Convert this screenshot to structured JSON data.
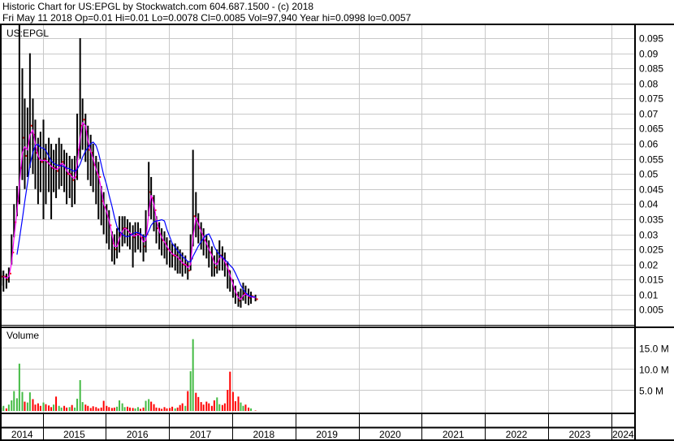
{
  "header": {
    "line1": "Historic Chart for US:EPGL by Stockwatch.com 604.687.1500 - (c) 2018",
    "line2": "Fri May 11 2018  Op=0.01  Hi=0.01  Lo=0.0078  Cl=0.0085  Vol=97,940  Year hi=0.0998  lo=0.0057"
  },
  "colors": {
    "price_bar": "#000000",
    "close_tick": "#ff0000",
    "ma_short": "#ff00ff",
    "ma_long": "#0000ff",
    "vol_up": "#44bb44",
    "vol_down": "#ff0000",
    "grid": "#c8c8c8"
  },
  "chart_data": [
    {
      "type": "line",
      "symbol": "US:EPGL",
      "y_ticks": [
        "0.005",
        "0.01",
        "0.015",
        "0.02",
        "0.025",
        "0.03",
        "0.035",
        "0.04",
        "0.045",
        "0.05",
        "0.055",
        "0.06",
        "0.065",
        "0.07",
        "0.075",
        "0.08",
        "0.085",
        "0.09",
        "0.095"
      ],
      "ylim": [
        0,
        0.0975
      ],
      "grid": true,
      "dates": [
        "2014-05-01",
        "2014-05-15",
        "2014-06-01",
        "2014-06-15",
        "2014-07-01",
        "2014-07-15",
        "2014-08-01",
        "2014-08-15",
        "2014-09-01",
        "2014-09-15",
        "2014-10-01",
        "2014-10-15",
        "2014-11-01",
        "2014-11-15",
        "2014-12-01",
        "2014-12-15",
        "2015-01-01",
        "2015-01-15",
        "2015-02-01",
        "2015-02-15",
        "2015-03-01",
        "2015-03-15",
        "2015-04-01",
        "2015-04-15",
        "2015-05-01",
        "2015-05-15",
        "2015-06-01",
        "2015-06-15",
        "2015-07-01",
        "2015-07-15",
        "2015-08-01",
        "2015-08-15",
        "2015-09-01",
        "2015-09-15",
        "2015-10-01",
        "2015-10-15",
        "2015-11-01",
        "2015-11-15",
        "2015-12-01",
        "2015-12-15",
        "2016-01-01",
        "2016-01-15",
        "2016-02-01",
        "2016-02-15",
        "2016-03-01",
        "2016-03-15",
        "2016-04-01",
        "2016-04-15",
        "2016-05-01",
        "2016-05-15",
        "2016-06-01",
        "2016-06-15",
        "2016-07-01",
        "2016-07-15",
        "2016-08-01",
        "2016-08-15",
        "2016-09-01",
        "2016-09-15",
        "2016-10-01",
        "2016-10-15",
        "2016-11-01",
        "2016-11-15",
        "2016-12-01",
        "2016-12-15",
        "2017-01-01",
        "2017-01-15",
        "2017-02-01",
        "2017-02-15",
        "2017-03-01",
        "2017-03-15",
        "2017-04-01",
        "2017-04-15",
        "2017-05-01",
        "2017-05-15",
        "2017-06-01",
        "2017-06-15",
        "2017-07-01",
        "2017-07-15",
        "2017-08-01",
        "2017-08-15",
        "2017-09-01",
        "2017-09-15",
        "2017-10-01",
        "2017-10-15",
        "2017-11-01",
        "2017-11-15",
        "2017-12-01",
        "2017-12-15",
        "2018-01-01",
        "2018-01-15",
        "2018-02-01",
        "2018-02-15",
        "2018-03-01",
        "2018-03-15",
        "2018-04-01",
        "2018-04-15",
        "2018-05-11"
      ],
      "close": [
        0.016,
        0.016,
        0.015,
        0.017,
        0.024,
        0.034,
        0.041,
        0.052,
        0.062,
        0.056,
        0.06,
        0.066,
        0.063,
        0.057,
        0.055,
        0.054,
        0.055,
        0.054,
        0.053,
        0.052,
        0.052,
        0.051,
        0.053,
        0.054,
        0.052,
        0.05,
        0.05,
        0.048,
        0.049,
        0.058,
        0.066,
        0.068,
        0.064,
        0.058,
        0.057,
        0.053,
        0.05,
        0.049,
        0.041,
        0.039,
        0.036,
        0.033,
        0.027,
        0.025,
        0.027,
        0.03,
        0.032,
        0.032,
        0.031,
        0.03,
        0.029,
        0.03,
        0.03,
        0.029,
        0.026,
        0.03,
        0.044,
        0.042,
        0.038,
        0.032,
        0.03,
        0.028,
        0.027,
        0.025,
        0.024,
        0.023,
        0.023,
        0.022,
        0.021,
        0.02,
        0.02,
        0.018,
        0.022,
        0.036,
        0.035,
        0.032,
        0.03,
        0.028,
        0.026,
        0.024,
        0.022,
        0.019,
        0.021,
        0.023,
        0.022,
        0.02,
        0.018,
        0.015,
        0.012,
        0.01,
        0.008,
        0.009,
        0.0105,
        0.01,
        0.009,
        0.0095,
        0.0085
      ],
      "high": [
        0.018,
        0.018,
        0.017,
        0.019,
        0.03,
        0.04,
        0.046,
        0.0998,
        0.085,
        0.075,
        0.072,
        0.09,
        0.075,
        0.068,
        0.062,
        0.064,
        0.068,
        0.06,
        0.062,
        0.06,
        0.058,
        0.06,
        0.062,
        0.06,
        0.058,
        0.057,
        0.056,
        0.055,
        0.056,
        0.07,
        0.095,
        0.075,
        0.07,
        0.066,
        0.063,
        0.06,
        0.056,
        0.054,
        0.046,
        0.044,
        0.04,
        0.038,
        0.031,
        0.03,
        0.032,
        0.036,
        0.036,
        0.036,
        0.035,
        0.034,
        0.033,
        0.034,
        0.034,
        0.032,
        0.03,
        0.038,
        0.054,
        0.049,
        0.043,
        0.036,
        0.034,
        0.032,
        0.031,
        0.029,
        0.028,
        0.027,
        0.027,
        0.026,
        0.025,
        0.024,
        0.023,
        0.021,
        0.03,
        0.058,
        0.044,
        0.037,
        0.034,
        0.032,
        0.03,
        0.028,
        0.026,
        0.023,
        0.025,
        0.028,
        0.026,
        0.024,
        0.021,
        0.018,
        0.015,
        0.013,
        0.011,
        0.012,
        0.014,
        0.013,
        0.012,
        0.011,
        0.01
      ],
      "low": [
        0.013,
        0.011,
        0.012,
        0.014,
        0.02,
        0.029,
        0.036,
        0.04,
        0.048,
        0.045,
        0.049,
        0.052,
        0.05,
        0.045,
        0.04,
        0.044,
        0.035,
        0.04,
        0.044,
        0.035,
        0.044,
        0.042,
        0.045,
        0.046,
        0.044,
        0.04,
        0.042,
        0.039,
        0.04,
        0.048,
        0.055,
        0.058,
        0.054,
        0.048,
        0.046,
        0.044,
        0.04,
        0.035,
        0.033,
        0.03,
        0.027,
        0.025,
        0.021,
        0.02,
        0.022,
        0.024,
        0.026,
        0.027,
        0.026,
        0.025,
        0.019,
        0.024,
        0.025,
        0.024,
        0.021,
        0.024,
        0.036,
        0.035,
        0.031,
        0.027,
        0.025,
        0.023,
        0.022,
        0.02,
        0.019,
        0.019,
        0.018,
        0.017,
        0.017,
        0.016,
        0.017,
        0.015,
        0.018,
        0.026,
        0.029,
        0.027,
        0.025,
        0.023,
        0.022,
        0.019,
        0.016,
        0.016,
        0.017,
        0.018,
        0.018,
        0.016,
        0.012,
        0.011,
        0.009,
        0.007,
        0.006,
        0.0057,
        0.008,
        0.007,
        0.0065,
        0.007,
        0.0078
      ]
    },
    {
      "type": "bar",
      "title": "Volume",
      "y_ticks": [
        "5.0 M",
        "10.0 M",
        "15.0 M"
      ],
      "ylim": [
        0,
        19
      ],
      "unit": "M",
      "grid": true,
      "values": [
        0.8,
        1.2,
        0.6,
        1.5,
        2.5,
        4.7,
        3,
        11.2,
        4.5,
        2.2,
        2,
        4.4,
        2.8,
        1.5,
        1.8,
        1.2,
        2,
        1.6,
        1.3,
        0.9,
        1.5,
        3.4,
        1.2,
        0.8,
        1.2,
        0.8,
        0.9,
        1.4,
        0.8,
        2.9,
        7.3,
        2.1,
        1.5,
        1.2,
        0.7,
        1.1,
        0.9,
        0.6,
        0.8,
        2.4,
        1.2,
        0.9,
        0.7,
        0.8,
        1,
        2.5,
        1.8,
        0.9,
        1,
        0.8,
        0.7,
        0.6,
        0.9,
        0.5,
        0.8,
        2.4,
        2.8,
        2.2,
        1.6,
        0.8,
        0.7,
        0.5,
        0.9,
        0.6,
        0.7,
        1,
        0.6,
        0.8,
        1.4,
        1.8,
        1.2,
        4.7,
        9.4,
        17,
        4.3,
        3.3,
        2.1,
        1.5,
        2.2,
        1.8,
        1.2,
        2.5,
        3.2,
        1.6,
        1.4,
        1.8,
        5,
        9.3,
        4.5,
        2.3,
        3.4,
        2,
        1.2,
        1.5,
        0.8,
        0.6,
        0.1
      ]
    }
  ],
  "x_axis": {
    "labels": [
      "2014",
      "2015",
      "2016",
      "2017",
      "2018",
      "2019",
      "2020",
      "2021",
      "2022",
      "2023",
      "2024"
    ]
  }
}
